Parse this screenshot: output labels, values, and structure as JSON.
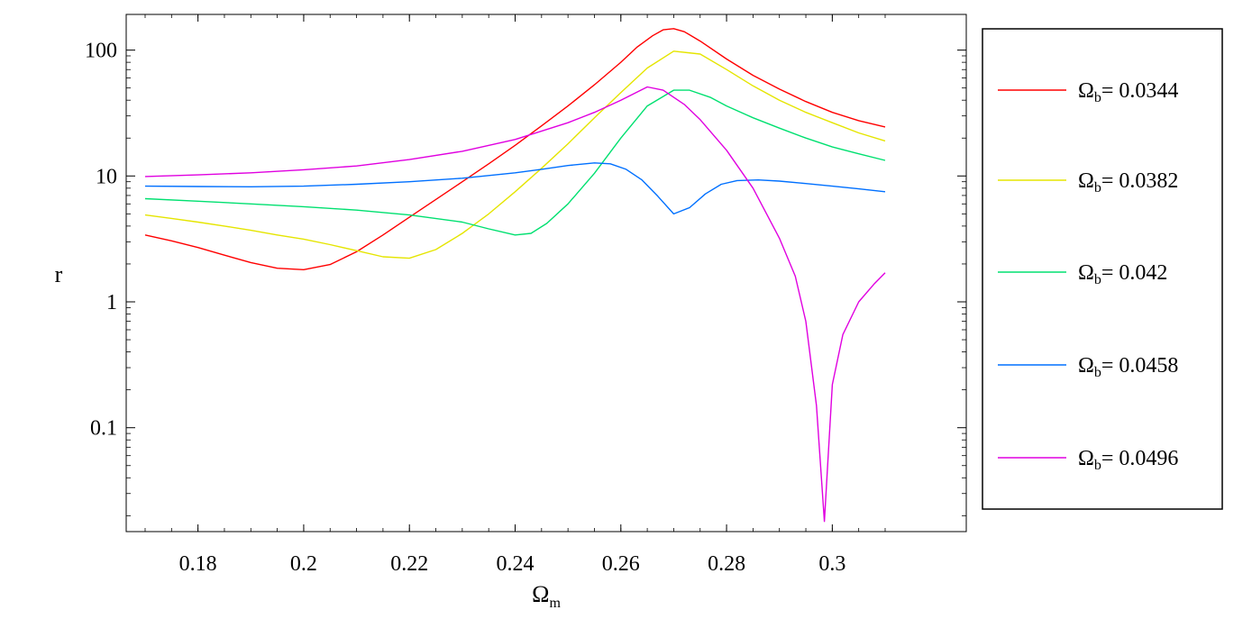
{
  "chart_data": {
    "type": "line",
    "xlabel": "Ωm",
    "xlabel_main": "Ω",
    "xlabel_sub": "m",
    "ylabel": "r",
    "y_scale": "log",
    "xlim": [
      0.17,
      0.31
    ],
    "ylim": [
      0.015,
      220
    ],
    "x_ticks": [
      {
        "value": 0.18,
        "label": "0.18"
      },
      {
        "value": 0.2,
        "label": "0.2"
      },
      {
        "value": 0.22,
        "label": "0.22"
      },
      {
        "value": 0.24,
        "label": "0.24"
      },
      {
        "value": 0.26,
        "label": "0.26"
      },
      {
        "value": 0.28,
        "label": "0.28"
      },
      {
        "value": 0.3,
        "label": "0.3"
      }
    ],
    "y_ticks": [
      {
        "value": 0.1,
        "label": "0.1"
      },
      {
        "value": 1,
        "label": "1"
      },
      {
        "value": 10,
        "label": "10"
      },
      {
        "value": 100,
        "label": "100"
      }
    ],
    "grid": false,
    "legend_position": "right",
    "series": [
      {
        "name": "Ωb= 0.0344",
        "legend_main": "Ω",
        "legend_sub": "b",
        "legend_value": "= 0.0344",
        "color": "#ff0000",
        "points": [
          [
            0.17,
            3.4
          ],
          [
            0.175,
            3.05
          ],
          [
            0.18,
            2.7
          ],
          [
            0.185,
            2.35
          ],
          [
            0.19,
            2.05
          ],
          [
            0.195,
            1.85
          ],
          [
            0.2,
            1.8
          ],
          [
            0.205,
            1.98
          ],
          [
            0.21,
            2.5
          ],
          [
            0.215,
            3.4
          ],
          [
            0.22,
            4.7
          ],
          [
            0.225,
            6.5
          ],
          [
            0.23,
            9.0
          ],
          [
            0.235,
            12.5
          ],
          [
            0.24,
            17.5
          ],
          [
            0.245,
            25
          ],
          [
            0.25,
            36
          ],
          [
            0.255,
            53
          ],
          [
            0.26,
            80
          ],
          [
            0.263,
            105
          ],
          [
            0.266,
            130
          ],
          [
            0.268,
            145
          ],
          [
            0.27,
            148
          ],
          [
            0.272,
            140
          ],
          [
            0.275,
            118
          ],
          [
            0.28,
            85
          ],
          [
            0.285,
            63
          ],
          [
            0.29,
            49
          ],
          [
            0.295,
            39
          ],
          [
            0.3,
            32
          ],
          [
            0.305,
            27.5
          ],
          [
            0.31,
            24.5
          ]
        ]
      },
      {
        "name": "Ωb= 0.0382",
        "legend_main": "Ω",
        "legend_sub": "b",
        "legend_value": "= 0.0382",
        "color": "#e5e500",
        "points": [
          [
            0.17,
            4.9
          ],
          [
            0.175,
            4.6
          ],
          [
            0.18,
            4.3
          ],
          [
            0.185,
            4.0
          ],
          [
            0.19,
            3.7
          ],
          [
            0.195,
            3.4
          ],
          [
            0.2,
            3.15
          ],
          [
            0.205,
            2.85
          ],
          [
            0.21,
            2.55
          ],
          [
            0.215,
            2.28
          ],
          [
            0.22,
            2.22
          ],
          [
            0.225,
            2.6
          ],
          [
            0.23,
            3.5
          ],
          [
            0.235,
            5.0
          ],
          [
            0.24,
            7.5
          ],
          [
            0.245,
            11.5
          ],
          [
            0.25,
            18
          ],
          [
            0.255,
            29
          ],
          [
            0.26,
            46
          ],
          [
            0.265,
            72
          ],
          [
            0.27,
            98
          ],
          [
            0.275,
            93
          ],
          [
            0.28,
            70
          ],
          [
            0.285,
            52
          ],
          [
            0.29,
            40
          ],
          [
            0.295,
            32
          ],
          [
            0.3,
            26.5
          ],
          [
            0.305,
            22
          ],
          [
            0.31,
            19
          ]
        ]
      },
      {
        "name": "Ωb= 0.042",
        "legend_main": "Ω",
        "legend_sub": "b",
        "legend_value": "= 0.042",
        "color": "#00e070",
        "points": [
          [
            0.17,
            6.6
          ],
          [
            0.18,
            6.3
          ],
          [
            0.19,
            6.0
          ],
          [
            0.2,
            5.7
          ],
          [
            0.21,
            5.35
          ],
          [
            0.22,
            4.9
          ],
          [
            0.23,
            4.3
          ],
          [
            0.235,
            3.8
          ],
          [
            0.24,
            3.4
          ],
          [
            0.243,
            3.5
          ],
          [
            0.246,
            4.2
          ],
          [
            0.25,
            6.0
          ],
          [
            0.255,
            10.5
          ],
          [
            0.26,
            20
          ],
          [
            0.265,
            36
          ],
          [
            0.27,
            48
          ],
          [
            0.273,
            48
          ],
          [
            0.277,
            42
          ],
          [
            0.28,
            36
          ],
          [
            0.285,
            29
          ],
          [
            0.29,
            24
          ],
          [
            0.295,
            20
          ],
          [
            0.3,
            17
          ],
          [
            0.305,
            15
          ],
          [
            0.31,
            13.3
          ]
        ]
      },
      {
        "name": "Ωb= 0.0458",
        "legend_main": "Ω",
        "legend_sub": "b",
        "legend_value": "= 0.0458",
        "color": "#0070ff",
        "points": [
          [
            0.17,
            8.3
          ],
          [
            0.18,
            8.25
          ],
          [
            0.19,
            8.2
          ],
          [
            0.2,
            8.3
          ],
          [
            0.21,
            8.6
          ],
          [
            0.22,
            9.0
          ],
          [
            0.23,
            9.6
          ],
          [
            0.24,
            10.6
          ],
          [
            0.245,
            11.3
          ],
          [
            0.25,
            12.1
          ],
          [
            0.255,
            12.7
          ],
          [
            0.258,
            12.5
          ],
          [
            0.261,
            11.3
          ],
          [
            0.264,
            9.3
          ],
          [
            0.267,
            6.9
          ],
          [
            0.27,
            5.0
          ],
          [
            0.273,
            5.6
          ],
          [
            0.276,
            7.2
          ],
          [
            0.279,
            8.6
          ],
          [
            0.282,
            9.2
          ],
          [
            0.286,
            9.3
          ],
          [
            0.29,
            9.1
          ],
          [
            0.295,
            8.7
          ],
          [
            0.3,
            8.3
          ],
          [
            0.305,
            7.9
          ],
          [
            0.31,
            7.5
          ]
        ]
      },
      {
        "name": "Ωb= 0.0496",
        "legend_main": "Ω",
        "legend_sub": "b",
        "legend_value": "= 0.0496",
        "color": "#e000e0",
        "points": [
          [
            0.17,
            9.9
          ],
          [
            0.18,
            10.2
          ],
          [
            0.19,
            10.6
          ],
          [
            0.2,
            11.2
          ],
          [
            0.21,
            12.0
          ],
          [
            0.22,
            13.5
          ],
          [
            0.23,
            15.7
          ],
          [
            0.24,
            19.5
          ],
          [
            0.25,
            26.5
          ],
          [
            0.255,
            32
          ],
          [
            0.26,
            40
          ],
          [
            0.265,
            51
          ],
          [
            0.268,
            48
          ],
          [
            0.272,
            37
          ],
          [
            0.275,
            28
          ],
          [
            0.28,
            16
          ],
          [
            0.285,
            8
          ],
          [
            0.29,
            3.2
          ],
          [
            0.293,
            1.6
          ],
          [
            0.295,
            0.7
          ],
          [
            0.297,
            0.15
          ],
          [
            0.2985,
            0.018
          ],
          [
            0.3,
            0.22
          ],
          [
            0.302,
            0.55
          ],
          [
            0.305,
            1.0
          ],
          [
            0.308,
            1.4
          ],
          [
            0.31,
            1.7
          ]
        ]
      }
    ]
  }
}
